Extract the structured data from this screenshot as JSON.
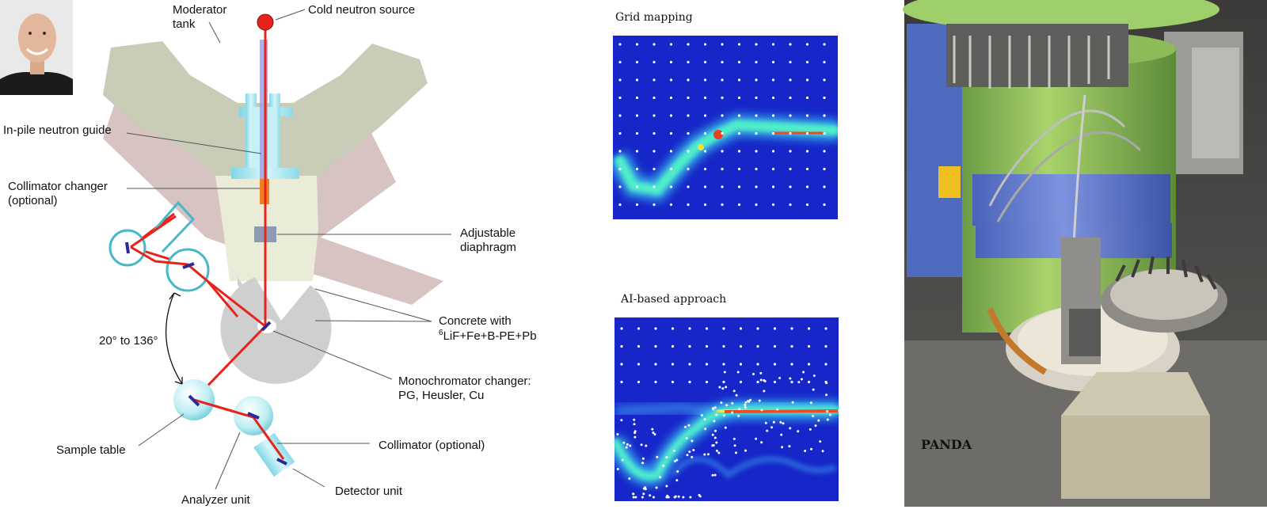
{
  "labels": {
    "moderator_tank_line1": "Moderator",
    "moderator_tank_line2": "tank",
    "cold_neutron_source": "Cold neutron source",
    "inpile_guide": "In-pile neutron guide",
    "collimator_changer_line1": "Collimator changer",
    "collimator_changer_line2": "(optional)",
    "adjustable_diaphragm_line1": "Adjustable",
    "adjustable_diaphragm_line2": "diaphragm",
    "angle_range": "20° to 136°",
    "concrete_line1": "Concrete with",
    "concrete_sup": "6",
    "concrete_line2": "LiF+Fe+B-PE+Pb",
    "mono_changer_line1": "Monochromator changer:",
    "mono_changer_line2": "PG, Heusler, Cu",
    "sample_table": "Sample table",
    "collimator_optional": "Collimator (optional)",
    "analyzer_unit": "Analyzer unit",
    "detector_unit": "Detector unit"
  },
  "panels": {
    "grid_title": "Grid mapping",
    "ai_title": "AI-based approach"
  },
  "photo": {
    "instrument_label": "PANDA"
  },
  "colors": {
    "beam": "#e8231b",
    "heat_background": "#1626c8",
    "tank": "#c9ccb7",
    "shield_pink": "#d8c3c3",
    "concrete": "#cfcfcf",
    "glass": "#a8e6ee"
  }
}
